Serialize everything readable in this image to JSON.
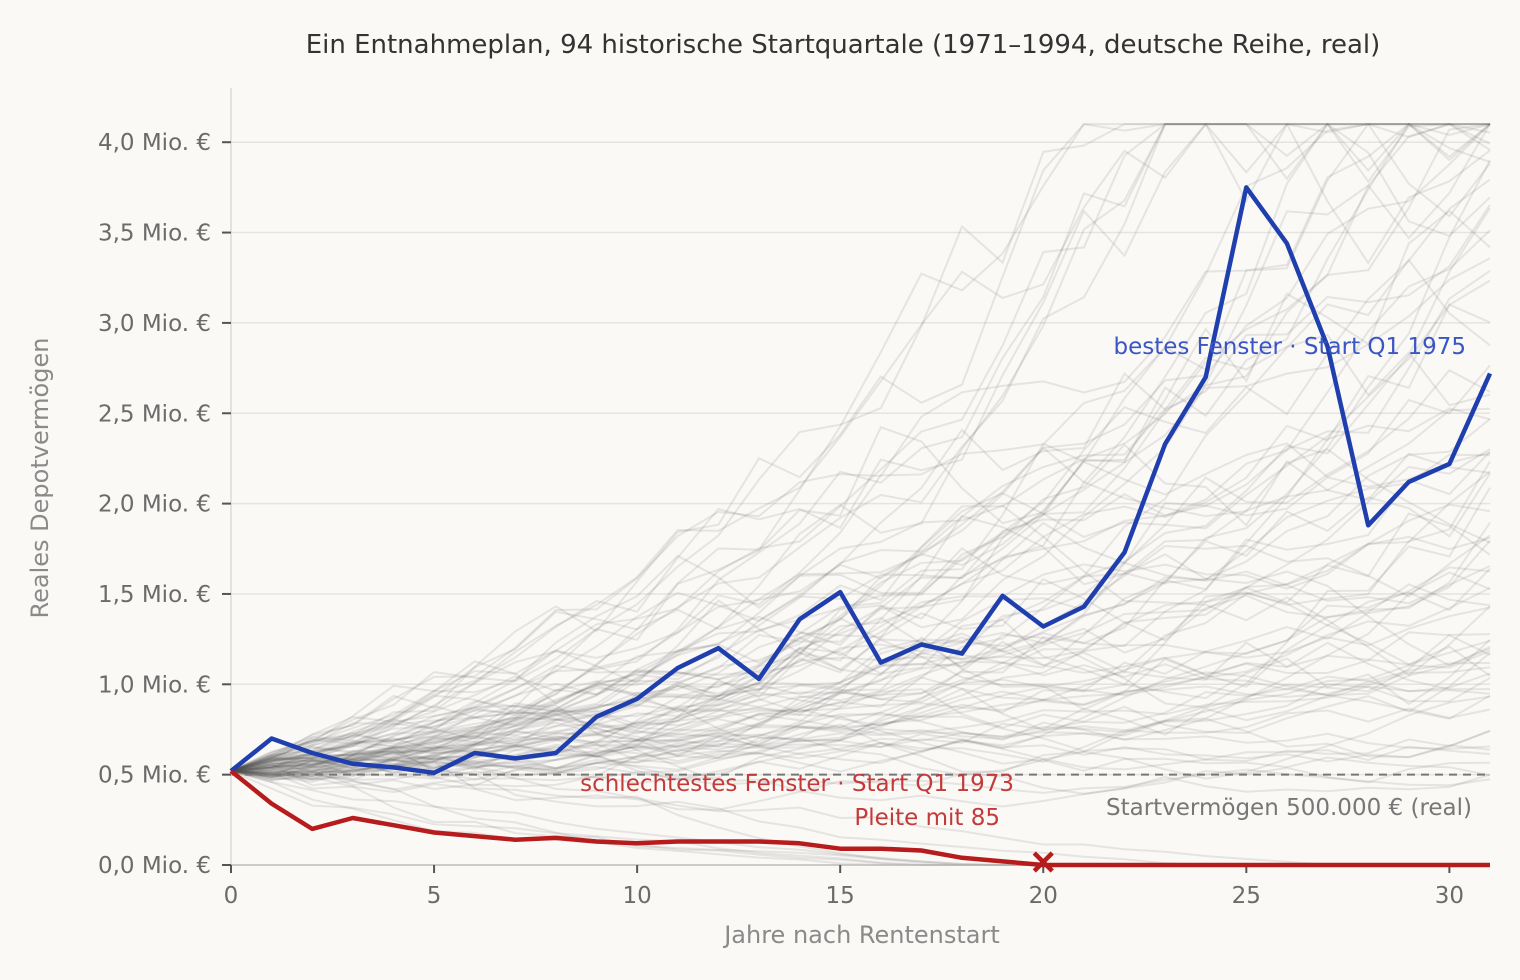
{
  "chart_data": {
    "type": "line",
    "title": "Ein Entnahmeplan, 94 historische Startquartale (1971–1994, deutsche Reihe, real)",
    "xlabel": "Jahre nach Rentenstart",
    "ylabel": "Reales Depotvermögen",
    "xlim": [
      0,
      31
    ],
    "ylim": [
      0,
      4.3
    ],
    "x_ticks": [
      0,
      5,
      10,
      15,
      20,
      25,
      30
    ],
    "x_tick_labels": [
      "0",
      "5",
      "10",
      "15",
      "20",
      "25",
      "30"
    ],
    "y_ticks": [
      0,
      0.5,
      1.0,
      1.5,
      2.0,
      2.5,
      3.0,
      3.5,
      4.0
    ],
    "y_tick_labels": [
      "0,0 Mio. €",
      "0,5 Mio. €",
      "1,0 Mio. €",
      "1,5 Mio. €",
      "2,0 Mio. €",
      "2,5 Mio. €",
      "3,0 Mio. €",
      "3,5 Mio. €",
      "4,0 Mio. €"
    ],
    "grid": "horizontal",
    "background_paths_count": 94,
    "series": [
      {
        "name": "bestes Fenster · Start Q1 1975",
        "color": "#1f3fae",
        "x": [
          0,
          1,
          2,
          3,
          4,
          5,
          6,
          7,
          8,
          9,
          10,
          11,
          12,
          13,
          14,
          15,
          16,
          17,
          18,
          19,
          20,
          21,
          22,
          23,
          24,
          25,
          26,
          27,
          28,
          29,
          30,
          31
        ],
        "values": [
          0.52,
          0.7,
          0.62,
          0.56,
          0.54,
          0.51,
          0.62,
          0.59,
          0.62,
          0.82,
          0.92,
          1.09,
          1.2,
          1.03,
          1.36,
          1.51,
          1.12,
          1.22,
          1.17,
          1.49,
          1.32,
          1.43,
          1.73,
          2.33,
          2.7,
          3.75,
          3.44,
          2.87,
          1.88,
          2.12,
          2.22,
          2.72
        ]
      },
      {
        "name": "schlechtestes Fenster · Start Q1 1973",
        "color": "#b71c1c",
        "x": [
          0,
          1,
          2,
          3,
          4,
          5,
          6,
          7,
          8,
          9,
          10,
          11,
          12,
          13,
          14,
          15,
          16,
          17,
          18,
          19,
          20,
          21,
          22,
          23,
          24,
          25,
          26,
          27,
          28,
          29,
          30,
          31
        ],
        "values": [
          0.52,
          0.34,
          0.2,
          0.26,
          0.22,
          0.18,
          0.16,
          0.14,
          0.15,
          0.13,
          0.12,
          0.13,
          0.13,
          0.13,
          0.12,
          0.09,
          0.09,
          0.08,
          0.04,
          0.02,
          0.0,
          0.0,
          0.0,
          0.0,
          0.0,
          0.0,
          0.0,
          0.0,
          0.0,
          0.0,
          0.0,
          0.0
        ]
      }
    ],
    "reference_line": {
      "y": 0.5,
      "label": "Startvermögen 500.000 € (real)",
      "style": "dashed",
      "color": "#777777"
    },
    "worst_marker": {
      "x": 20,
      "y": 0,
      "label": "Pleite mit 85"
    },
    "annotations": {
      "best": "bestes Fenster · Start Q1 1975",
      "worst": "schlechtestes Fenster · Start Q1 1973",
      "ruin": "Pleite mit 85",
      "start_capital": "Startvermögen 500.000 € (real)"
    }
  },
  "colors": {
    "background": "#faf9f6",
    "grid": "#e6e4df",
    "ghost": "#555555",
    "best": "#1f3fae",
    "worst": "#b71c1c",
    "best_label": "#3a55c4",
    "worst_label": "#c43a3a"
  }
}
